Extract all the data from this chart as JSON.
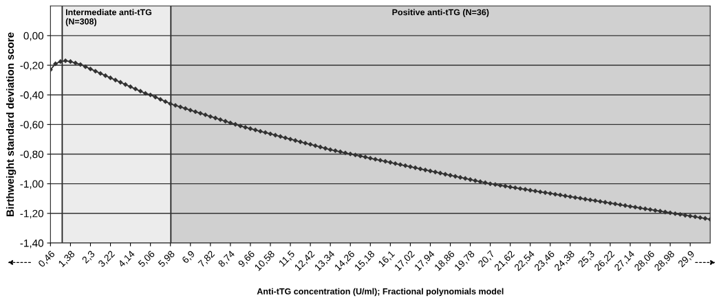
{
  "chart_data": {
    "type": "line",
    "xlabel": "Anti-tTG concentration (U/ml); Fractional polynomials model",
    "ylabel": "Birthweight standard deviation score",
    "x": [
      0.46,
      0.69,
      0.92,
      1.15,
      1.38,
      1.61,
      1.84,
      2.07,
      2.3,
      2.53,
      2.76,
      2.99,
      3.22,
      3.45,
      3.68,
      3.91,
      4.14,
      4.37,
      4.6,
      4.83,
      5.06,
      5.29,
      5.52,
      5.75,
      5.98,
      6.21,
      6.44,
      6.67,
      6.9,
      7.13,
      7.36,
      7.59,
      7.82,
      8.05,
      8.28,
      8.51,
      8.74,
      8.97,
      9.2,
      9.43,
      9.66,
      9.89,
      10.12,
      10.35,
      10.58,
      10.81,
      11.04,
      11.27,
      11.5,
      11.73,
      11.96,
      12.19,
      12.42,
      12.65,
      12.88,
      13.11,
      13.34,
      13.57,
      13.8,
      14.03,
      14.26,
      14.49,
      14.72,
      14.95,
      15.18,
      15.41,
      15.64,
      15.87,
      16.1,
      16.33,
      16.56,
      16.79,
      17.02,
      17.25,
      17.48,
      17.71,
      17.94,
      18.17,
      18.4,
      18.63,
      18.86,
      19.09,
      19.32,
      19.55,
      19.78,
      20.01,
      20.24,
      20.47,
      20.7,
      20.93,
      21.16,
      21.39,
      21.62,
      21.85,
      22.08,
      22.31,
      22.54,
      22.77,
      23,
      23.23,
      23.46,
      23.69,
      23.92,
      24.15,
      24.38,
      24.61,
      24.84,
      25.07,
      25.3,
      25.53,
      25.76,
      25.99,
      26.22,
      26.45,
      26.68,
      26.91,
      27.14,
      27.37,
      27.6,
      27.83,
      28.06,
      28.29,
      28.52,
      28.75,
      28.98,
      29.21,
      29.44,
      29.67,
      29.9,
      30.13,
      30.36,
      30.59,
      30.82
    ],
    "series": [
      {
        "color": "#333333",
        "values": [
          -0.23,
          -0.19,
          -0.175,
          -0.17,
          -0.175,
          -0.185,
          -0.195,
          -0.21,
          -0.225,
          -0.24,
          -0.255,
          -0.27,
          -0.285,
          -0.3,
          -0.315,
          -0.33,
          -0.345,
          -0.36,
          -0.375,
          -0.39,
          -0.4,
          -0.415,
          -0.43,
          -0.445,
          -0.46,
          -0.471,
          -0.481,
          -0.492,
          -0.503,
          -0.514,
          -0.524,
          -0.535,
          -0.546,
          -0.556,
          -0.567,
          -0.578,
          -0.589,
          -0.599,
          -0.61,
          -0.619,
          -0.628,
          -0.637,
          -0.646,
          -0.654,
          -0.663,
          -0.672,
          -0.681,
          -0.69,
          -0.699,
          -0.708,
          -0.717,
          -0.726,
          -0.734,
          -0.743,
          -0.752,
          -0.761,
          -0.77,
          -0.777,
          -0.784,
          -0.792,
          -0.799,
          -0.806,
          -0.813,
          -0.82,
          -0.828,
          -0.835,
          -0.842,
          -0.849,
          -0.856,
          -0.864,
          -0.871,
          -0.878,
          -0.885,
          -0.892,
          -0.9,
          -0.907,
          -0.914,
          -0.921,
          -0.928,
          -0.936,
          -0.943,
          -0.95,
          -0.957,
          -0.964,
          -0.972,
          -0.979,
          -0.986,
          -0.993,
          -1.0,
          -1.005,
          -1.011,
          -1.016,
          -1.022,
          -1.027,
          -1.033,
          -1.038,
          -1.044,
          -1.049,
          -1.055,
          -1.06,
          -1.065,
          -1.071,
          -1.076,
          -1.082,
          -1.087,
          -1.093,
          -1.098,
          -1.104,
          -1.109,
          -1.114,
          -1.12,
          -1.125,
          -1.131,
          -1.136,
          -1.142,
          -1.147,
          -1.153,
          -1.158,
          -1.164,
          -1.169,
          -1.174,
          -1.18,
          -1.185,
          -1.191,
          -1.196,
          -1.202,
          -1.207,
          -1.213,
          -1.218,
          -1.223,
          -1.229,
          -1.234,
          -1.24
        ]
      }
    ],
    "marker": "diamond",
    "line_style": "solid",
    "grid": "y",
    "ref_lines": [
      {
        "axis": "x",
        "value": 1.0,
        "color": "#222222"
      },
      {
        "axis": "x",
        "value": 6.0,
        "color": "#222222"
      }
    ],
    "xlim": [
      0.46,
      30.82
    ],
    "xticks": [
      {
        "value": 0.46,
        "label": "0,46"
      },
      {
        "value": 1.38,
        "label": "1,38"
      },
      {
        "value": 2.3,
        "label": "2,3"
      },
      {
        "value": 3.22,
        "label": "3,22"
      },
      {
        "value": 4.14,
        "label": "4,14"
      },
      {
        "value": 5.06,
        "label": "5,06"
      },
      {
        "value": 5.98,
        "label": "5,98"
      },
      {
        "value": 6.9,
        "label": "6,9"
      },
      {
        "value": 7.82,
        "label": "7,82"
      },
      {
        "value": 8.74,
        "label": "8,74"
      },
      {
        "value": 9.66,
        "label": "9,66"
      },
      {
        "value": 10.58,
        "label": "10,58"
      },
      {
        "value": 11.5,
        "label": "11,5"
      },
      {
        "value": 12.42,
        "label": "12,42"
      },
      {
        "value": 13.34,
        "label": "13,34"
      },
      {
        "value": 14.26,
        "label": "14,26"
      },
      {
        "value": 15.18,
        "label": "15,18"
      },
      {
        "value": 16.1,
        "label": "16,1"
      },
      {
        "value": 17.02,
        "label": "17,02"
      },
      {
        "value": 17.94,
        "label": "17,94"
      },
      {
        "value": 18.86,
        "label": "18,86"
      },
      {
        "value": 19.78,
        "label": "19,78"
      },
      {
        "value": 20.7,
        "label": "20,7"
      },
      {
        "value": 21.62,
        "label": "21,62"
      },
      {
        "value": 22.54,
        "label": "22,54"
      },
      {
        "value": 23.46,
        "label": "23,46"
      },
      {
        "value": 24.38,
        "label": "24,38"
      },
      {
        "value": 25.3,
        "label": "25,3"
      },
      {
        "value": 26.22,
        "label": "26,22"
      },
      {
        "value": 27.14,
        "label": "27,14"
      },
      {
        "value": 28.06,
        "label": "28,06"
      },
      {
        "value": 28.98,
        "label": "28,98"
      },
      {
        "value": 29.9,
        "label": "29,9"
      }
    ],
    "ylim": [
      -1.4,
      0.2
    ],
    "yticks": [
      {
        "value": -1.4,
        "label": "-1,40"
      },
      {
        "value": -1.2,
        "label": "-1,20"
      },
      {
        "value": -1.0,
        "label": "-1,00"
      },
      {
        "value": -0.8,
        "label": "-0,80"
      },
      {
        "value": -0.6,
        "label": "-0,60"
      },
      {
        "value": -0.4,
        "label": "-0,40"
      },
      {
        "value": -0.2,
        "label": "-0,20"
      },
      {
        "value": 0,
        "label": "0,00"
      }
    ],
    "bands": [
      {
        "axis": "x",
        "from": 1.0,
        "to": 6.0,
        "label": "Intermediate anti-tTG\n(N=308)",
        "color": "#ececec"
      },
      {
        "axis": "x",
        "from": 6.0,
        "to": 30.82,
        "label": "Positive anti-tTG (N=36)",
        "color": "#d0d0d0"
      }
    ]
  }
}
